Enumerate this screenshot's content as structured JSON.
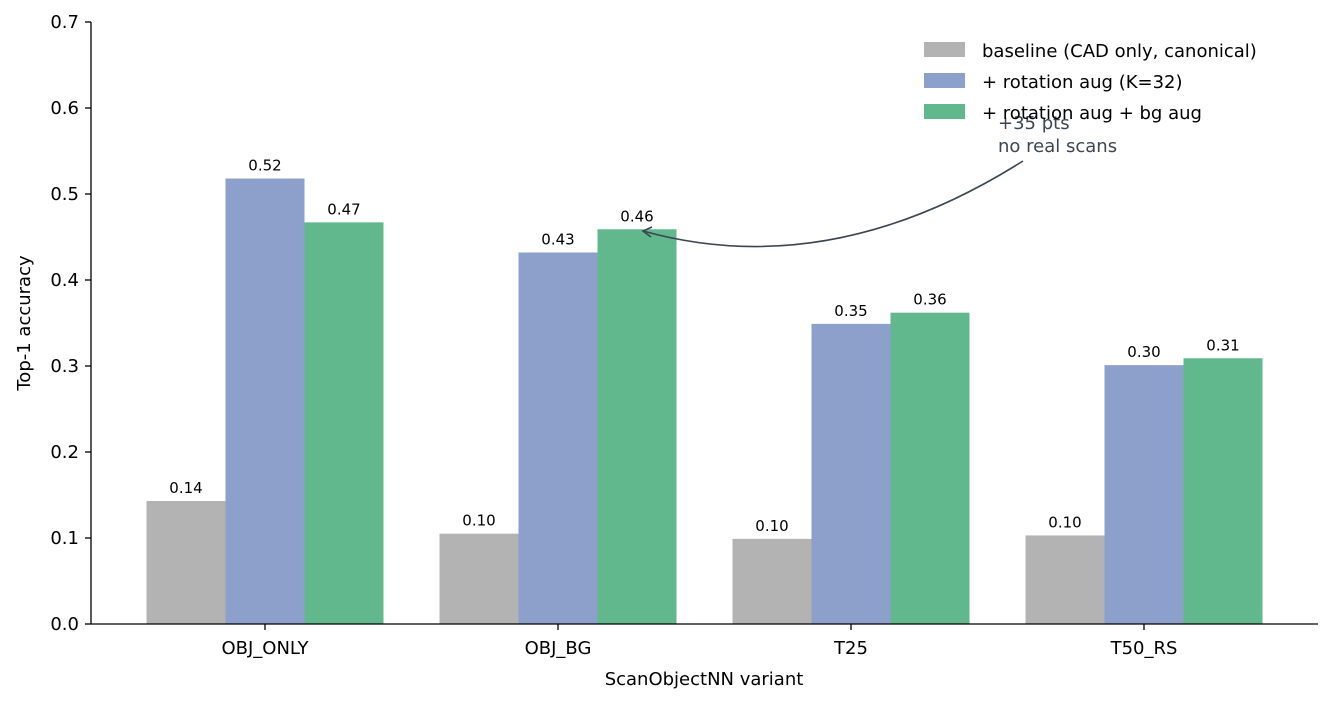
{
  "chart_data": {
    "type": "bar",
    "categories": [
      "OBJ_ONLY",
      "OBJ_BG",
      "T25",
      "T50_RS"
    ],
    "series": [
      {
        "name": "baseline (CAD only, canonical)",
        "color": "#b3b3b3",
        "values": [
          0.143,
          0.105,
          0.099,
          0.103
        ],
        "labels": [
          "0.14",
          "0.10",
          "0.10",
          "0.10"
        ]
      },
      {
        "name": "+ rotation aug (K=32)",
        "color": "#8da0cb",
        "values": [
          0.518,
          0.432,
          0.349,
          0.301
        ],
        "labels": [
          "0.52",
          "0.43",
          "0.35",
          "0.30"
        ]
      },
      {
        "name": "+ rotation aug + bg aug",
        "color": "#60b88c",
        "values": [
          0.467,
          0.459,
          0.362,
          0.309
        ],
        "labels": [
          "0.47",
          "0.46",
          "0.36",
          "0.31"
        ]
      }
    ],
    "xlabel": "ScanObjectNN variant",
    "ylabel": "Top-1 accuracy",
    "ylim": [
      0,
      0.7
    ],
    "yticks": [
      "0.0",
      "0.1",
      "0.2",
      "0.3",
      "0.4",
      "0.5",
      "0.6",
      "0.7"
    ],
    "legend_position": "top-right",
    "grid": false,
    "annotation": {
      "lines": [
        "+35 pts",
        "no real scans"
      ],
      "target_category": "OBJ_BG",
      "target_series": 2
    }
  }
}
